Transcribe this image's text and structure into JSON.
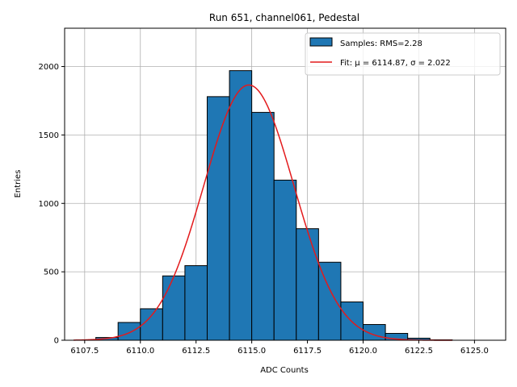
{
  "chart_data": {
    "type": "bar",
    "title": "Run 651, channel061, Pedestal",
    "xlabel": "ADC Counts",
    "ylabel": "Entries",
    "xlim": [
      6106.6,
      6126.4
    ],
    "ylim": [
      0,
      2280
    ],
    "grid": true,
    "xticks": [
      6107.5,
      6110.0,
      6112.5,
      6115.0,
      6117.5,
      6120.0,
      6122.5,
      6125.0
    ],
    "xtick_labels": [
      "6107.5",
      "6110.0",
      "6112.5",
      "6115.0",
      "6117.5",
      "6120.0",
      "6122.5",
      "6125.0"
    ],
    "yticks": [
      0,
      500,
      1000,
      1500,
      2000
    ],
    "ytick_labels": [
      "0",
      "500",
      "1000",
      "1500",
      "2000"
    ],
    "bin_width": 1,
    "bins": [
      {
        "left": 6108,
        "count": 20
      },
      {
        "left": 6109,
        "count": 130
      },
      {
        "left": 6110,
        "count": 230
      },
      {
        "left": 6111,
        "count": 470
      },
      {
        "left": 6112,
        "count": 545
      },
      {
        "left": 6113,
        "count": 1780
      },
      {
        "left": 6114,
        "count": 1970
      },
      {
        "left": 6115,
        "count": 1665
      },
      {
        "left": 6116,
        "count": 1170
      },
      {
        "left": 6117,
        "count": 815
      },
      {
        "left": 6118,
        "count": 570
      },
      {
        "left": 6119,
        "count": 280
      },
      {
        "left": 6120,
        "count": 115
      },
      {
        "left": 6121,
        "count": 50
      },
      {
        "left": 6122,
        "count": 15
      },
      {
        "left": 6123,
        "count": 3
      }
    ],
    "fit": {
      "mu": 6114.87,
      "sigma": 2.022,
      "amplitude": 1865,
      "x_range": [
        6107,
        6124
      ]
    },
    "legend": {
      "location": "top-right",
      "entries": [
        {
          "label": "Samples: RMS=2.28",
          "kind": "patch"
        },
        {
          "label": "Fit: μ = 6114.87, σ = 2.022",
          "kind": "line"
        }
      ]
    },
    "colors": {
      "bars": "#1f77b4",
      "bar_edge": "#000000",
      "fit": "#e31a1c",
      "grid": "#b0b0b0"
    }
  }
}
